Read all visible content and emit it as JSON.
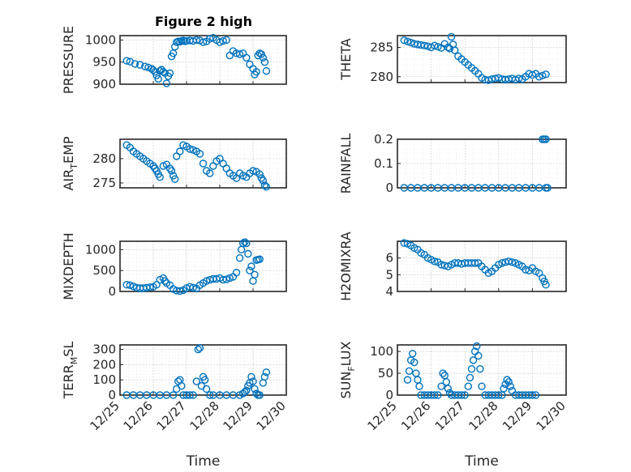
{
  "figure": {
    "title": "Figure 2 high",
    "marker_color": "#0072BD"
  },
  "chart_data": [
    {
      "type": "scatter",
      "name": "pressure",
      "ylabel": "PRESSURE",
      "ylim": [
        900,
        1010
      ],
      "yticks": [
        900,
        950,
        1000
      ],
      "xlim": [
        0,
        5
      ],
      "show_xticklabels": false,
      "x": [
        0.2,
        0.3,
        0.45,
        0.6,
        0.75,
        0.85,
        0.95,
        1.0,
        1.05,
        1.1,
        1.15,
        1.2,
        1.25,
        1.3,
        1.35,
        1.4,
        1.45,
        1.5,
        1.55,
        1.6,
        1.65,
        1.7,
        1.75,
        1.8,
        1.85,
        1.9,
        1.95,
        2.0,
        2.1,
        2.2,
        2.3,
        2.4,
        2.5,
        2.6,
        2.7,
        2.8,
        2.9,
        3.0,
        3.1,
        3.2,
        3.3,
        3.4,
        3.5,
        3.6,
        3.7,
        3.8,
        3.9,
        4.0,
        4.05,
        4.1,
        4.15,
        4.2,
        4.25,
        4.3,
        4.35,
        4.4
      ],
      "y": [
        953,
        951,
        946,
        944,
        940,
        938,
        935,
        932,
        928,
        920,
        912,
        930,
        933,
        928,
        925,
        902,
        918,
        925,
        963,
        970,
        985,
        995,
        997,
        996,
        998,
        999,
        997,
        998,
        999,
        998,
        1000,
        999,
        995,
        997,
        1003,
        1005,
        1000,
        995,
        998,
        1000,
        965,
        975,
        970,
        968,
        970,
        960,
        945,
        935,
        922,
        928,
        965,
        970,
        968,
        960,
        950,
        930
      ]
    },
    {
      "type": "scatter",
      "name": "theta",
      "ylabel": "THETA",
      "ylim": [
        279,
        287
      ],
      "yticks": [
        280,
        285
      ],
      "xlim": [
        0,
        5
      ],
      "show_xticklabels": false,
      "x": [
        0.2,
        0.3,
        0.4,
        0.5,
        0.6,
        0.7,
        0.8,
        0.9,
        1.0,
        1.1,
        1.2,
        1.3,
        1.4,
        1.5,
        1.55,
        1.6,
        1.65,
        1.7,
        1.8,
        1.9,
        2.0,
        2.1,
        2.2,
        2.3,
        2.4,
        2.5,
        2.6,
        2.7,
        2.8,
        2.9,
        3.0,
        3.1,
        3.2,
        3.3,
        3.4,
        3.5,
        3.6,
        3.7,
        3.8,
        3.9,
        4.0,
        4.1,
        4.2,
        4.3,
        4.4
      ],
      "y": [
        286.2,
        286.0,
        285.8,
        285.6,
        285.5,
        285.4,
        285.3,
        285.2,
        285.0,
        285.3,
        285.1,
        284.9,
        285.6,
        285.0,
        284.8,
        286.8,
        285.5,
        284.5,
        283.5,
        283.0,
        282.5,
        282.0,
        281.5,
        281.0,
        280.5,
        279.8,
        279.5,
        279.4,
        279.6,
        279.7,
        279.8,
        279.6,
        279.5,
        279.6,
        279.7,
        279.5,
        279.7,
        279.6,
        280.0,
        280.5,
        280.3,
        280.5,
        280.0,
        280.2,
        280.4
      ]
    },
    {
      "type": "scatter",
      "name": "air_temp",
      "ylabel": "AIR_TEMP",
      "ylim": [
        274,
        284
      ],
      "yticks": [
        275,
        280
      ],
      "xlim": [
        0,
        5
      ],
      "show_xticklabels": false,
      "x": [
        0.2,
        0.3,
        0.4,
        0.5,
        0.6,
        0.7,
        0.8,
        0.9,
        1.0,
        1.05,
        1.1,
        1.15,
        1.2,
        1.3,
        1.4,
        1.5,
        1.55,
        1.6,
        1.65,
        1.7,
        1.8,
        1.9,
        2.0,
        2.1,
        2.2,
        2.3,
        2.4,
        2.5,
        2.6,
        2.7,
        2.8,
        2.9,
        3.0,
        3.1,
        3.2,
        3.3,
        3.4,
        3.5,
        3.6,
        3.7,
        3.8,
        3.9,
        4.0,
        4.1,
        4.2,
        4.25,
        4.3,
        4.35,
        4.4
      ],
      "y": [
        282.8,
        282.3,
        281.5,
        281.0,
        280.5,
        280.0,
        279.5,
        279.0,
        278.5,
        278.0,
        277.5,
        276.8,
        276.2,
        278.5,
        278.8,
        278.0,
        277.5,
        276.5,
        275.8,
        280.5,
        281.5,
        282.8,
        282.5,
        282.0,
        281.8,
        281.5,
        281.0,
        279.0,
        277.5,
        277.0,
        278.5,
        279.5,
        280.0,
        279.0,
        278.0,
        277.0,
        276.5,
        276.0,
        277.0,
        276.5,
        276.2,
        277.0,
        277.5,
        277.3,
        276.8,
        276.0,
        275.5,
        274.5,
        274.2
      ]
    },
    {
      "type": "scatter",
      "name": "rainfall",
      "ylabel": "RAINFALL",
      "ylim": [
        0,
        0.2
      ],
      "yticks": [
        0,
        0.1,
        0.2
      ],
      "xlim": [
        0,
        5
      ],
      "show_xticklabels": false,
      "x": [
        0.2,
        0.4,
        0.6,
        0.8,
        1.0,
        1.2,
        1.4,
        1.6,
        1.8,
        2.0,
        2.2,
        2.4,
        2.6,
        2.8,
        3.0,
        3.2,
        3.4,
        3.6,
        3.8,
        4.0,
        4.2,
        4.4,
        4.3,
        4.35,
        4.4,
        4.45
      ],
      "y": [
        0,
        0,
        0,
        0,
        0,
        0,
        0,
        0,
        0,
        0,
        0,
        0,
        0,
        0,
        0,
        0,
        0,
        0,
        0,
        0,
        0,
        0,
        0.2,
        0.2,
        0.2,
        0
      ]
    },
    {
      "type": "scatter",
      "name": "mixdepth",
      "ylabel": "MIXDEPTH",
      "ylim": [
        0,
        1200
      ],
      "yticks": [
        0,
        500,
        1000
      ],
      "xlim": [
        0,
        5
      ],
      "show_xticklabels": false,
      "x": [
        0.2,
        0.3,
        0.4,
        0.5,
        0.6,
        0.7,
        0.8,
        0.9,
        1.0,
        1.1,
        1.2,
        1.3,
        1.35,
        1.4,
        1.5,
        1.6,
        1.7,
        1.8,
        1.9,
        2.0,
        2.1,
        2.2,
        2.3,
        2.4,
        2.5,
        2.6,
        2.7,
        2.8,
        2.9,
        3.0,
        3.1,
        3.2,
        3.3,
        3.4,
        3.5,
        3.6,
        3.65,
        3.7,
        3.75,
        3.8,
        3.85,
        3.9,
        3.95,
        4.0,
        4.05,
        4.1,
        4.15,
        4.2
      ],
      "y": [
        160,
        150,
        120,
        90,
        80,
        80,
        90,
        100,
        110,
        160,
        280,
        320,
        250,
        200,
        150,
        60,
        20,
        10,
        30,
        80,
        110,
        90,
        70,
        150,
        200,
        250,
        280,
        300,
        300,
        320,
        280,
        290,
        320,
        350,
        450,
        800,
        1000,
        1150,
        1180,
        1150,
        900,
        500,
        600,
        250,
        400,
        750,
        760,
        770
      ]
    },
    {
      "type": "scatter",
      "name": "h2omixra",
      "ylabel": "H2OMIXRA",
      "ylim": [
        4,
        7
      ],
      "yticks": [
        4,
        5,
        6
      ],
      "xlim": [
        0,
        5
      ],
      "show_xticklabels": false,
      "x": [
        0.2,
        0.3,
        0.4,
        0.5,
        0.6,
        0.7,
        0.8,
        0.9,
        1.0,
        1.1,
        1.2,
        1.3,
        1.4,
        1.5,
        1.6,
        1.7,
        1.8,
        1.9,
        2.0,
        2.1,
        2.2,
        2.3,
        2.4,
        2.5,
        2.6,
        2.7,
        2.8,
        2.9,
        3.0,
        3.1,
        3.2,
        3.3,
        3.4,
        3.5,
        3.6,
        3.7,
        3.8,
        3.9,
        4.0,
        4.1,
        4.2,
        4.3,
        4.35,
        4.4
      ],
      "y": [
        6.9,
        6.85,
        6.75,
        6.6,
        6.5,
        6.3,
        6.2,
        6.0,
        5.9,
        5.8,
        5.75,
        5.6,
        5.55,
        5.5,
        5.6,
        5.7,
        5.7,
        5.65,
        5.7,
        5.7,
        5.7,
        5.7,
        5.7,
        5.5,
        5.3,
        5.1,
        5.2,
        5.4,
        5.6,
        5.7,
        5.75,
        5.8,
        5.75,
        5.7,
        5.6,
        5.5,
        5.3,
        5.25,
        5.4,
        5.2,
        5.1,
        4.8,
        4.6,
        4.4
      ]
    },
    {
      "type": "scatter",
      "name": "terr_msl",
      "ylabel": "TERR_MSL",
      "ylim": [
        0,
        330
      ],
      "yticks": [
        0,
        100,
        200,
        300
      ],
      "xlim": [
        0,
        5
      ],
      "show_xticklabels": true,
      "xticks": [
        0,
        1,
        2,
        3,
        4,
        5
      ],
      "xticklabels": [
        "12/25",
        "12/26",
        "12/27",
        "12/28",
        "12/29",
        "12/30"
      ],
      "xlabel": "Time",
      "x": [
        0.2,
        0.4,
        0.6,
        0.8,
        1.0,
        1.2,
        1.4,
        1.6,
        1.7,
        1.75,
        1.8,
        1.85,
        1.9,
        2.0,
        2.1,
        2.2,
        2.3,
        2.35,
        2.4,
        2.45,
        2.5,
        2.55,
        2.6,
        2.7,
        2.8,
        3.0,
        3.2,
        3.4,
        3.6,
        3.7,
        3.75,
        3.8,
        3.85,
        3.9,
        3.95,
        4.0,
        4.05,
        4.1,
        4.15,
        4.2,
        4.3,
        4.35,
        4.4
      ],
      "y": [
        0,
        0,
        0,
        0,
        0,
        0,
        0,
        0,
        40,
        90,
        100,
        60,
        0,
        0,
        0,
        0,
        90,
        300,
        310,
        60,
        120,
        100,
        40,
        0,
        0,
        0,
        0,
        0,
        0,
        10,
        20,
        30,
        60,
        80,
        120,
        90,
        40,
        10,
        0,
        0,
        80,
        120,
        150
      ]
    },
    {
      "type": "scatter",
      "name": "sun_flux",
      "ylabel": "SUN_FLUX",
      "ylim": [
        0,
        115
      ],
      "yticks": [
        0,
        50,
        100
      ],
      "xlim": [
        0,
        5
      ],
      "show_xticklabels": true,
      "xticks": [
        0,
        1,
        2,
        3,
        4,
        5
      ],
      "xticklabels": [
        "12/25",
        "12/26",
        "12/27",
        "12/28",
        "12/29",
        "12/30"
      ],
      "xlabel": "Time",
      "x": [
        0.3,
        0.35,
        0.4,
        0.45,
        0.5,
        0.55,
        0.6,
        0.65,
        0.7,
        0.8,
        0.9,
        1.0,
        1.1,
        1.2,
        1.3,
        1.35,
        1.4,
        1.45,
        1.5,
        1.55,
        1.6,
        1.7,
        1.8,
        1.9,
        2.0,
        2.1,
        2.15,
        2.2,
        2.25,
        2.3,
        2.35,
        2.4,
        2.45,
        2.5,
        2.6,
        2.7,
        2.8,
        2.9,
        3.0,
        3.1,
        3.15,
        3.2,
        3.25,
        3.3,
        3.35,
        3.4,
        3.5,
        3.6,
        3.7,
        3.8,
        3.9,
        4.0,
        4.1
      ],
      "y": [
        35,
        55,
        80,
        95,
        75,
        50,
        35,
        20,
        0,
        0,
        0,
        0,
        0,
        0,
        20,
        50,
        45,
        30,
        15,
        5,
        0,
        0,
        0,
        0,
        0,
        20,
        40,
        60,
        80,
        100,
        112,
        90,
        60,
        20,
        0,
        0,
        0,
        0,
        0,
        0,
        15,
        25,
        35,
        30,
        20,
        10,
        0,
        0,
        0,
        0,
        0,
        0,
        0
      ]
    }
  ]
}
